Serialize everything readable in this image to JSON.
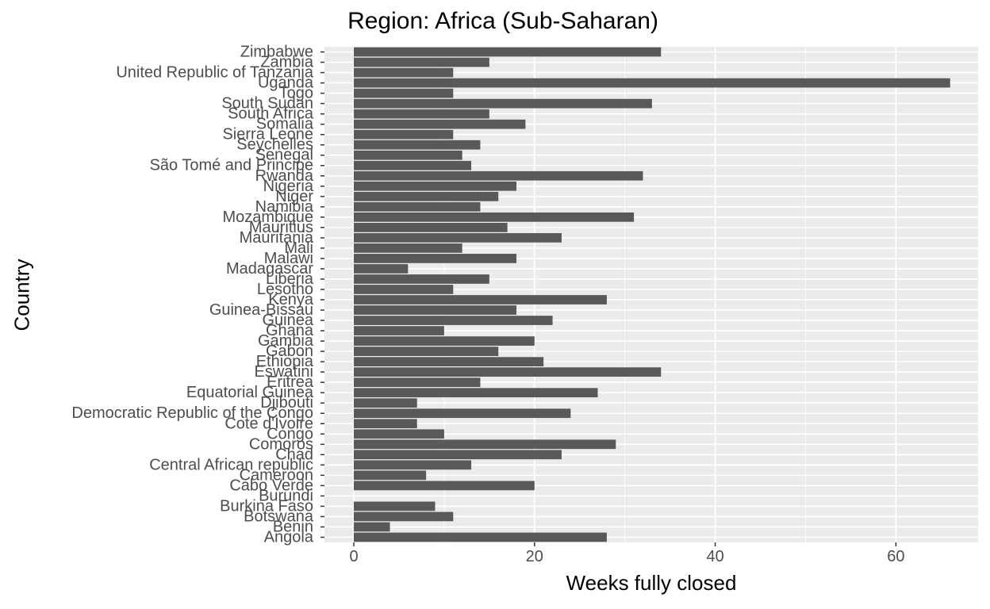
{
  "chart_data": {
    "type": "bar",
    "orientation": "horizontal",
    "title": "Region: Africa (Sub-Saharan)",
    "xlabel": "Weeks fully closed",
    "ylabel": "Country",
    "xlim": [
      0,
      69
    ],
    "xticks": [
      0,
      20,
      40,
      60
    ],
    "grid": true,
    "legend": "none",
    "colors": {
      "bar": "#595959",
      "panel": "#ebebeb",
      "grid": "#ffffff",
      "tick_text": "#4d4d4d"
    },
    "categories": [
      "Angola",
      "Benin",
      "Botswana",
      "Burkina Faso",
      "Burundi",
      "Cabo Verde",
      "Cameroon",
      "Central African republic",
      "Chad",
      "Comoros",
      "Congo",
      "Cote d'Ivoire",
      "Democratic Republic of the Congo",
      "Djibouti",
      "Equatorial Guinea",
      "Eritrea",
      "Eswatini",
      "Ethiopia",
      "Gabon",
      "Gambia",
      "Ghana",
      "Guinea",
      "Guinea-Bissau",
      "Kenya",
      "Lesotho",
      "Liberia",
      "Madagascar",
      "Malawi",
      "Mali",
      "Mauritania",
      "Mauritius",
      "Mozambique",
      "Namibia",
      "Niger",
      "Nigeria",
      "Rwanda",
      "São Tomé and Principe",
      "Senegal",
      "Seychelles",
      "Sierra Leone",
      "Somalia",
      "South Africa",
      "South Sudan",
      "Togo",
      "Uganda",
      "United Republic of Tanzania",
      "Zambia",
      "Zimbabwe"
    ],
    "values": [
      28,
      4,
      11,
      9,
      0,
      20,
      8,
      13,
      23,
      29,
      10,
      7,
      24,
      7,
      27,
      14,
      34,
      21,
      16,
      20,
      10,
      22,
      18,
      28,
      11,
      15,
      6,
      18,
      12,
      23,
      17,
      31,
      14,
      16,
      18,
      32,
      13,
      12,
      14,
      11,
      19,
      15,
      33,
      11,
      66,
      11,
      15,
      34
    ]
  }
}
